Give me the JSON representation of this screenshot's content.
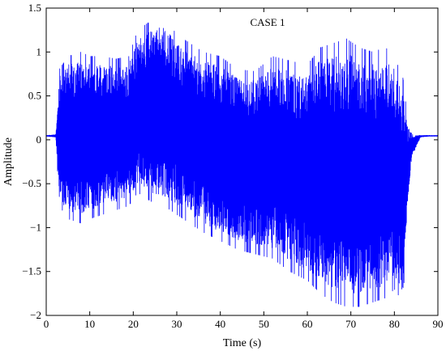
{
  "chart_data": {
    "type": "line",
    "title": "CASE 1",
    "xlabel": "Time (s)",
    "ylabel": "Amplitude",
    "xlim": [
      0,
      90
    ],
    "ylim": [
      -2,
      1.5
    ],
    "xticks": [
      0,
      10,
      20,
      30,
      40,
      50,
      60,
      70,
      80,
      90
    ],
    "yticks": [
      -2,
      -1.5,
      -1,
      -0.5,
      0,
      0.5,
      1,
      1.5
    ],
    "xtick_labels": [
      "0",
      "10",
      "20",
      "30",
      "40",
      "50",
      "60",
      "70",
      "80",
      "90"
    ],
    "ytick_labels": [
      "−2",
      "−1.5",
      "−1",
      "−0.5",
      "0",
      "0.5",
      "1",
      "1.5"
    ],
    "grid": false,
    "series": [
      {
        "color": "#0000ff",
        "envelope": {
          "x": [
            0,
            2.2,
            3,
            5,
            8,
            10,
            13,
            16,
            19,
            21,
            24,
            27,
            30,
            33,
            36,
            40,
            44,
            48,
            52,
            56,
            60,
            63,
            66,
            69,
            72,
            75,
            78,
            80,
            82,
            83,
            84,
            86,
            88,
            90
          ],
          "upper": [
            0.05,
            0.06,
            0.8,
            0.95,
            1.0,
            0.95,
            0.95,
            0.92,
            0.95,
            1.25,
            1.35,
            1.4,
            1.2,
            1.1,
            1.0,
            0.95,
            0.8,
            0.78,
            0.95,
            0.9,
            0.85,
            1.05,
            1.1,
            1.15,
            1.05,
            1.0,
            1.05,
            0.95,
            0.7,
            0.25,
            0.06,
            0.05,
            0.05,
            0.05
          ],
          "lower": [
            0.04,
            0.03,
            -0.75,
            -0.9,
            -0.95,
            -0.9,
            -0.85,
            -0.8,
            -0.75,
            -0.6,
            -0.7,
            -0.75,
            -0.85,
            -0.95,
            -1.05,
            -1.15,
            -1.25,
            -1.3,
            -1.35,
            -1.5,
            -1.6,
            -1.75,
            -1.85,
            -1.9,
            -1.9,
            -1.85,
            -1.8,
            -1.7,
            -1.85,
            -0.8,
            -0.2,
            0.03,
            0.04,
            0.04
          ]
        }
      }
    ]
  }
}
